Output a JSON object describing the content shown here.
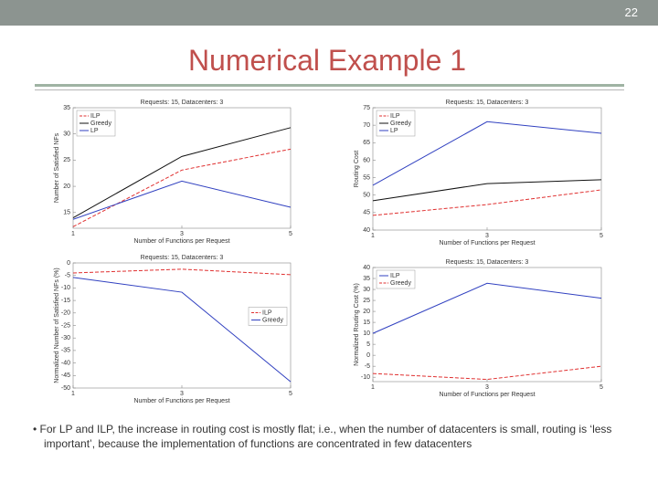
{
  "page_number": "22",
  "title": "Numerical Example 1",
  "bullet": "For LP and ILP, the increase in routing cost is mostly flat; i.e., when the number of datacenters is small, routing is ‘less important’, because the implementation of functions are concentrated in few datacenters",
  "chart_data": [
    {
      "type": "line",
      "title": "Requests: 15, Datacenters: 3",
      "x_label": "Number of Functions per Request",
      "y_label": "Number of Satisfied NFs",
      "x": [
        1,
        3,
        5
      ],
      "xlim": [
        1,
        5
      ],
      "xticks": [
        1,
        3,
        5
      ],
      "ylim": [
        12,
        35
      ],
      "yticks": [
        15,
        20,
        25,
        30,
        35
      ],
      "legend": "upper left",
      "series": [
        {
          "name": "ILP",
          "color": "#e03030",
          "linestyle": "dashed",
          "values": [
            12.3,
            23.1,
            27.1
          ]
        },
        {
          "name": "Greedy",
          "color": "#111111",
          "linestyle": "solid",
          "values": [
            14,
            25.7,
            31.2
          ]
        },
        {
          "name": "LP",
          "color": "#3040c0",
          "linestyle": "solid",
          "values": [
            13.7,
            21,
            16
          ]
        }
      ]
    },
    {
      "type": "line",
      "title": "Requests: 15, Datacenters: 3",
      "x_label": "Number of Functions per Request",
      "y_label": "Routing Cost",
      "x": [
        1,
        3,
        5
      ],
      "xlim": [
        1,
        5
      ],
      "xticks": [
        1,
        3,
        5
      ],
      "ylim": [
        40,
        75
      ],
      "yticks": [
        40,
        45,
        50,
        55,
        60,
        65,
        70,
        75
      ],
      "legend": "upper left",
      "series": [
        {
          "name": "ILP",
          "color": "#e03030",
          "linestyle": "dashed",
          "values": [
            44.2,
            47.3,
            51.5
          ]
        },
        {
          "name": "Greedy",
          "color": "#111111",
          "linestyle": "solid",
          "values": [
            48.4,
            53.3,
            54.4
          ]
        },
        {
          "name": "LP",
          "color": "#3040c0",
          "linestyle": "solid",
          "values": [
            52.8,
            71,
            67.7
          ]
        }
      ]
    },
    {
      "type": "line",
      "title": "Requests: 15, Datacenters: 3",
      "x_label": "Number of Functions per Request",
      "y_label": "Normalized Number of Satisfied NFs (%)",
      "x": [
        1,
        3,
        5
      ],
      "xlim": [
        1,
        5
      ],
      "xticks": [
        1,
        3,
        5
      ],
      "ylim": [
        -50,
        0
      ],
      "yticks": [
        -50,
        -45,
        -40,
        -35,
        -30,
        -25,
        -20,
        -15,
        -10,
        -5,
        0
      ],
      "legend": "center right",
      "series": [
        {
          "name": "ILP",
          "color": "#e03030",
          "linestyle": "dashed",
          "values": [
            -4,
            -2.5,
            -4.7
          ]
        },
        {
          "name": "Greedy",
          "color": "#3040c0",
          "linestyle": "solid",
          "values": [
            -5.8,
            -11.7,
            -47.5
          ]
        }
      ]
    },
    {
      "type": "line",
      "title": "Requests: 15, Datacenters: 3",
      "x_label": "Number of Functions per Request",
      "y_label": "Normalized Routing Cost (%)",
      "x": [
        1,
        3,
        5
      ],
      "xlim": [
        1,
        5
      ],
      "xticks": [
        1,
        3,
        5
      ],
      "ylim": [
        -12,
        40
      ],
      "yticks": [
        -10,
        -5,
        0,
        5,
        10,
        15,
        20,
        25,
        30,
        35,
        40
      ],
      "legend": "upper left",
      "series": [
        {
          "name": "ILP",
          "color": "#3040c0",
          "linestyle": "solid",
          "values": [
            10,
            32.8,
            26
          ]
        },
        {
          "name": "Greedy",
          "color": "#e03030",
          "linestyle": "dashed",
          "values": [
            -8.3,
            -11,
            -5
          ]
        }
      ]
    }
  ]
}
